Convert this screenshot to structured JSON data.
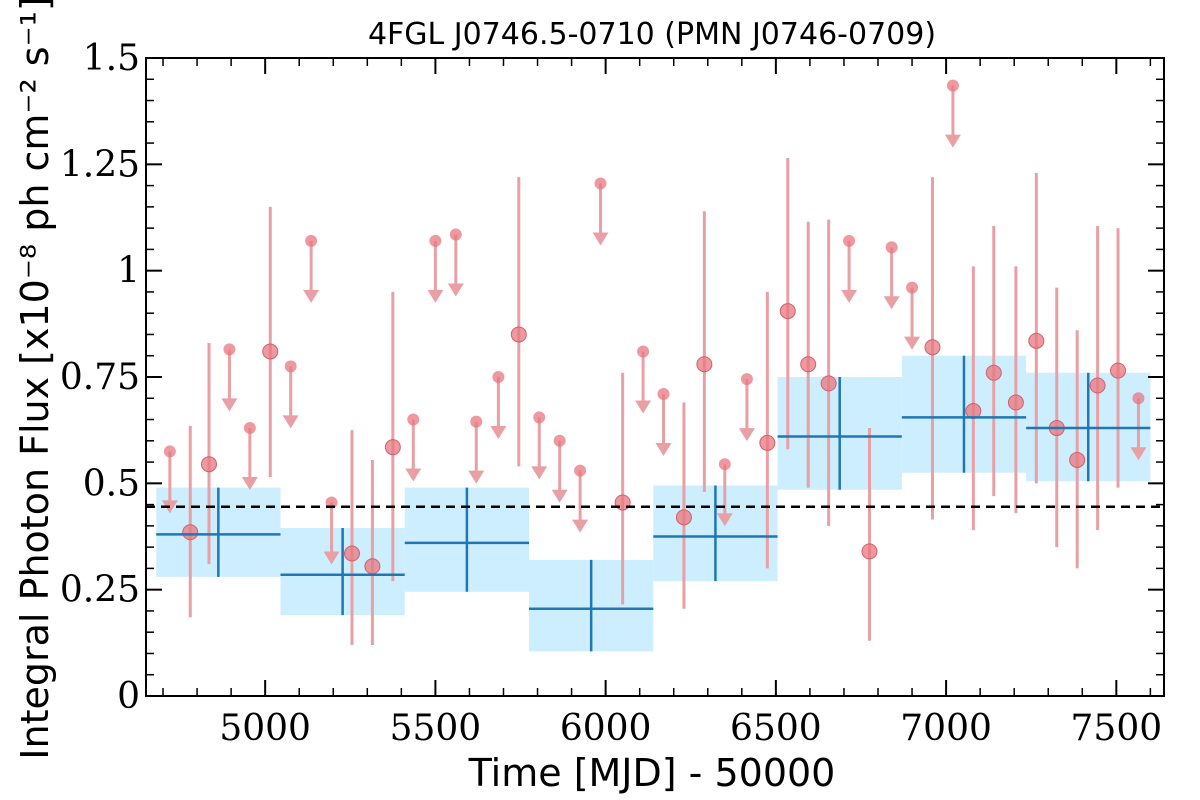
{
  "chart_data": {
    "type": "scatter",
    "title": "4FGL J0746.5-0710 (PMN J0746-0709)",
    "xlabel": "Time [MJD] - 50000",
    "ylabel": "Integral Photon Flux [x10⁻⁸ ph cm⁻² s⁻¹]",
    "xlim": [
      4650,
      7640
    ],
    "ylim": [
      0,
      1.5
    ],
    "x_ticks": [
      5000,
      5500,
      6000,
      6500,
      7000,
      7500
    ],
    "x_tick_labels": [
      "5000",
      "5500",
      "6000",
      "6500",
      "7000",
      "7500"
    ],
    "y_ticks": [
      0,
      0.25,
      0.5,
      0.75,
      1,
      1.25,
      1.5
    ],
    "y_tick_labels": [
      "0",
      "0.25",
      "0.5",
      "0.75",
      "1",
      "1.25",
      "1.5"
    ],
    "mean_flux": 0.445,
    "colors": {
      "points": "#e8777f",
      "point_errors": "#e8a0a4",
      "bins": "#1f77b4",
      "bins_band": "#cdeeff",
      "mean_line": "#000000"
    },
    "series": [
      {
        "kind": "monthly_detections",
        "points": [
          {
            "x": 4780,
            "y": 0.385,
            "lo": 0.185,
            "hi": 0.635
          },
          {
            "x": 4835,
            "y": 0.545,
            "lo": 0.31,
            "hi": 0.83
          },
          {
            "x": 5015,
            "y": 0.81,
            "lo": 0.515,
            "hi": 1.15
          },
          {
            "x": 5255,
            "y": 0.335,
            "lo": 0.12,
            "hi": 0.625
          },
          {
            "x": 5315,
            "y": 0.305,
            "lo": 0.12,
            "hi": 0.555
          },
          {
            "x": 5375,
            "y": 0.585,
            "lo": 0.27,
            "hi": 0.95
          },
          {
            "x": 5745,
            "y": 0.85,
            "lo": 0.54,
            "hi": 1.22
          },
          {
            "x": 6050,
            "y": 0.455,
            "lo": 0.215,
            "hi": 0.76
          },
          {
            "x": 6230,
            "y": 0.42,
            "lo": 0.205,
            "hi": 0.69
          },
          {
            "x": 6290,
            "y": 0.78,
            "lo": 0.48,
            "hi": 1.14
          },
          {
            "x": 6475,
            "y": 0.595,
            "lo": 0.3,
            "hi": 0.95
          },
          {
            "x": 6535,
            "y": 0.905,
            "lo": 0.58,
            "hi": 1.265
          },
          {
            "x": 6595,
            "y": 0.78,
            "lo": 0.49,
            "hi": 1.115
          },
          {
            "x": 6655,
            "y": 0.735,
            "lo": 0.4,
            "hi": 1.12
          },
          {
            "x": 6775,
            "y": 0.34,
            "lo": 0.13,
            "hi": 0.63
          },
          {
            "x": 6960,
            "y": 0.82,
            "lo": 0.415,
            "hi": 1.22
          },
          {
            "x": 7080,
            "y": 0.67,
            "lo": 0.39,
            "hi": 1.01
          },
          {
            "x": 7140,
            "y": 0.76,
            "lo": 0.47,
            "hi": 1.105
          },
          {
            "x": 7205,
            "y": 0.69,
            "lo": 0.43,
            "hi": 1.01
          },
          {
            "x": 7265,
            "y": 0.835,
            "lo": 0.5,
            "hi": 1.23
          },
          {
            "x": 7325,
            "y": 0.63,
            "lo": 0.35,
            "hi": 0.96
          },
          {
            "x": 7385,
            "y": 0.555,
            "lo": 0.3,
            "hi": 0.86
          },
          {
            "x": 7445,
            "y": 0.73,
            "lo": 0.39,
            "hi": 1.105
          },
          {
            "x": 7505,
            "y": 0.765,
            "lo": 0.49,
            "hi": 1.1
          }
        ]
      },
      {
        "kind": "monthly_upper_limits",
        "points": [
          {
            "x": 4720,
            "y": 0.575
          },
          {
            "x": 4895,
            "y": 0.815
          },
          {
            "x": 4955,
            "y": 0.63
          },
          {
            "x": 5075,
            "y": 0.775
          },
          {
            "x": 5135,
            "y": 1.07
          },
          {
            "x": 5195,
            "y": 0.455
          },
          {
            "x": 5435,
            "y": 0.65
          },
          {
            "x": 5500,
            "y": 1.07
          },
          {
            "x": 5560,
            "y": 1.085
          },
          {
            "x": 5620,
            "y": 0.645
          },
          {
            "x": 5685,
            "y": 0.75
          },
          {
            "x": 5805,
            "y": 0.655
          },
          {
            "x": 5865,
            "y": 0.6
          },
          {
            "x": 5925,
            "y": 0.53
          },
          {
            "x": 5985,
            "y": 1.205
          },
          {
            "x": 6110,
            "y": 0.81
          },
          {
            "x": 6170,
            "y": 0.71
          },
          {
            "x": 6350,
            "y": 0.545
          },
          {
            "x": 6415,
            "y": 0.745
          },
          {
            "x": 6715,
            "y": 1.07
          },
          {
            "x": 6840,
            "y": 1.055
          },
          {
            "x": 6900,
            "y": 0.96
          },
          {
            "x": 7020,
            "y": 1.435
          },
          {
            "x": 7565,
            "y": 0.7
          }
        ]
      },
      {
        "kind": "yearly_bins",
        "bins": [
          {
            "x0": 4680,
            "x1": 5045,
            "y": 0.38,
            "lo": 0.28,
            "hi": 0.49
          },
          {
            "x0": 5045,
            "x1": 5410,
            "y": 0.285,
            "lo": 0.19,
            "hi": 0.395
          },
          {
            "x0": 5410,
            "x1": 5775,
            "y": 0.36,
            "lo": 0.245,
            "hi": 0.49
          },
          {
            "x0": 5775,
            "x1": 6140,
            "y": 0.205,
            "lo": 0.105,
            "hi": 0.32
          },
          {
            "x0": 6140,
            "x1": 6505,
            "y": 0.375,
            "lo": 0.27,
            "hi": 0.495
          },
          {
            "x0": 6505,
            "x1": 6870,
            "y": 0.61,
            "lo": 0.485,
            "hi": 0.75
          },
          {
            "x0": 6870,
            "x1": 7235,
            "y": 0.655,
            "lo": 0.525,
            "hi": 0.8
          },
          {
            "x0": 7235,
            "x1": 7600,
            "y": 0.63,
            "lo": 0.505,
            "hi": 0.76
          }
        ]
      }
    ]
  }
}
